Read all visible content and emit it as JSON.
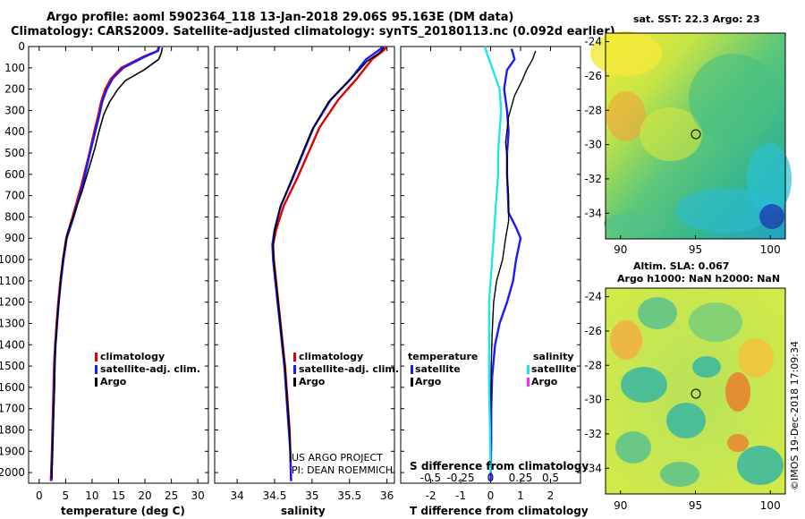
{
  "titles": {
    "line1": "Argo profile: aoml 5902364_118 13-Jan-2018 29.06S 95.163E (DM data)",
    "line2": "Climatology: CARS2009. Satellite-adjusted climatology: synTS_20180113.nc (0.092d earlier)"
  },
  "credit": {
    "line1": "US ARGO PROJECT",
    "line2": "PI: DEAN ROEMMICH",
    "imos": "©IMOS 19-Dec-2018 17:09:34"
  },
  "colors": {
    "clim": "#e00000",
    "sat": "#1a1aff",
    "argo": "#000000",
    "cyan": "#22e6e6",
    "magenta": "#ff22ff"
  },
  "chart_data": [
    {
      "type": "line",
      "name": "temperature-panel",
      "xlabel": "temperature (deg C)",
      "ylabel": "depth",
      "xlim": [
        -2,
        32
      ],
      "ylim": [
        2050,
        0
      ],
      "xticks": [
        "0",
        "5",
        "10",
        "15",
        "20",
        "25",
        "30"
      ],
      "yticks": [
        "0",
        "100",
        "200",
        "300",
        "400",
        "500",
        "600",
        "700",
        "800",
        "900",
        "1000",
        "1100",
        "1200",
        "1300",
        "1400",
        "1500",
        "1600",
        "1700",
        "1800",
        "1900",
        "2000"
      ],
      "legend": [
        "climatology",
        "satellite-adj. clim.",
        "Argo"
      ],
      "series": [
        {
          "name": "climatology",
          "color": "clim",
          "x": [
            22.6,
            22.4,
            19.5,
            15.5,
            13.6,
            12.5,
            11.7,
            11.2,
            10.4,
            9.5,
            8.0,
            6.3,
            5.1,
            4.5,
            4.0,
            3.6,
            3.3,
            3.0,
            2.8,
            2.6,
            2.4,
            2.2
          ],
          "y": [
            0,
            20,
            50,
            100,
            150,
            200,
            260,
            320,
            400,
            500,
            650,
            800,
            900,
            1000,
            1100,
            1200,
            1300,
            1400,
            1500,
            1700,
            1900,
            2040
          ]
        },
        {
          "name": "satellite-adj. clim.",
          "color": "sat",
          "x": [
            22.7,
            22.5,
            19.8,
            15.9,
            13.9,
            12.8,
            11.9,
            11.4,
            10.6,
            9.6,
            8.2,
            6.5,
            5.2,
            4.6,
            4.1,
            3.7,
            3.4,
            3.1,
            2.9,
            2.7,
            2.5,
            2.3
          ],
          "y": [
            0,
            20,
            50,
            100,
            150,
            200,
            260,
            320,
            400,
            500,
            650,
            800,
            900,
            1000,
            1100,
            1200,
            1300,
            1400,
            1500,
            1700,
            1900,
            2040
          ]
        },
        {
          "name": "Argo",
          "color": "argo",
          "x": [
            23.3,
            23.1,
            22.6,
            19.8,
            16.3,
            14.9,
            13.3,
            12.2,
            11.3,
            10.5,
            9.3,
            8.1,
            6.7,
            5.3,
            4.6,
            4.1,
            3.7,
            3.3,
            3.0,
            2.9,
            2.7,
            2.5,
            2.4
          ],
          "y": [
            5,
            30,
            60,
            110,
            160,
            200,
            260,
            320,
            400,
            480,
            580,
            680,
            780,
            880,
            980,
            1080,
            1200,
            1320,
            1450,
            1600,
            1750,
            1900,
            2030
          ]
        }
      ]
    },
    {
      "type": "line",
      "name": "salinity-panel",
      "xlabel": "salinity",
      "xlim": [
        33.7,
        36.1
      ],
      "ylim": [
        2050,
        0
      ],
      "xticks": [
        "34",
        "34.5",
        "35",
        "35.5",
        "36"
      ],
      "legend": [
        "climatology",
        "satellite-adj. clim.",
        "Argo"
      ],
      "series": [
        {
          "name": "climatology",
          "color": "clim",
          "x": [
            36.0,
            35.95,
            35.8,
            35.6,
            35.35,
            35.1,
            34.95,
            34.8,
            34.62,
            34.52,
            34.48,
            34.49,
            34.52,
            34.55,
            34.58,
            34.61,
            34.64,
            34.66,
            34.68,
            34.7,
            34.71,
            34.72
          ],
          "y": [
            0,
            20,
            60,
            150,
            250,
            380,
            500,
            620,
            750,
            860,
            930,
            1000,
            1100,
            1200,
            1300,
            1400,
            1500,
            1600,
            1700,
            1800,
            1900,
            2040
          ]
        },
        {
          "name": "satellite-adj. clim.",
          "color": "sat",
          "x": [
            35.95,
            35.88,
            35.72,
            35.52,
            35.25,
            35.02,
            34.88,
            34.74,
            34.58,
            34.5,
            34.47,
            34.48,
            34.51,
            34.54,
            34.57,
            34.6,
            34.63,
            34.65,
            34.67,
            34.69,
            34.71,
            34.72
          ],
          "y": [
            0,
            20,
            60,
            150,
            250,
            380,
            500,
            620,
            750,
            860,
            930,
            1000,
            1100,
            1200,
            1300,
            1400,
            1500,
            1600,
            1700,
            1800,
            1900,
            2040
          ]
        },
        {
          "name": "Argo",
          "color": "argo",
          "x": [
            35.96,
            35.9,
            35.73,
            35.5,
            35.22,
            35.0,
            34.86,
            34.72,
            34.57,
            34.5,
            34.48,
            34.49,
            34.52,
            34.55,
            34.58,
            34.61,
            34.64,
            34.66,
            34.68,
            34.7,
            34.71
          ],
          "y": [
            5,
            30,
            70,
            160,
            260,
            390,
            510,
            630,
            760,
            870,
            940,
            1010,
            1110,
            1210,
            1310,
            1410,
            1510,
            1610,
            1710,
            1810,
            1950
          ]
        }
      ]
    },
    {
      "type": "line",
      "name": "difference-panel",
      "xlabel": "T difference from climatology",
      "xlabel2": "S difference from climatology",
      "xlim": [
        -3,
        3
      ],
      "ylim": [
        2050,
        0
      ],
      "xticks": [
        "-2",
        "-1",
        "0",
        "1",
        "2"
      ],
      "xticks2": [
        "-0.5",
        "-0.25",
        "0",
        "0.25",
        "0.5"
      ],
      "legend_left_title": "temperature",
      "legend_left": [
        "satellite",
        "Argo"
      ],
      "legend_right_title": "salinity",
      "legend_right": [
        "satellite",
        "Argo"
      ],
      "series": [
        {
          "name": "T satellite",
          "color": "sat",
          "x": [
            0.7,
            0.8,
            0.55,
            0.45,
            0.55,
            0.6,
            0.55,
            0.55,
            0.58,
            0.6,
            0.85,
            1.0,
            0.85,
            0.75,
            0.55,
            0.3,
            0.15,
            0.05,
            0.02,
            0.02,
            0.0
          ],
          "y": [
            10,
            60,
            110,
            200,
            300,
            400,
            500,
            600,
            700,
            780,
            850,
            900,
            1000,
            1100,
            1200,
            1300,
            1400,
            1550,
            1700,
            1850,
            2040
          ]
        },
        {
          "name": "T Argo",
          "color": "argo",
          "x": [
            1.5,
            1.4,
            1.2,
            1.05,
            0.8,
            0.6,
            0.5,
            0.55,
            0.55,
            0.6,
            0.6,
            0.5,
            0.4,
            0.2,
            0.1,
            0.05,
            0.02,
            0.0,
            0.0
          ],
          "y": [
            20,
            60,
            110,
            160,
            230,
            330,
            450,
            520,
            600,
            700,
            820,
            900,
            1000,
            1100,
            1200,
            1350,
            1500,
            1700,
            1900
          ]
        },
        {
          "name": "S satellite",
          "color": "cyan",
          "x": [
            -0.2,
            -0.05,
            0.1,
            0.3,
            0.35,
            0.3,
            0.25,
            0.25,
            0.2,
            0.15,
            0.1,
            0.05,
            0.0,
            -0.05,
            -0.05,
            -0.05,
            -0.02,
            0.0
          ],
          "y": [
            0,
            60,
            120,
            200,
            300,
            400,
            500,
            600,
            700,
            800,
            900,
            1000,
            1100,
            1200,
            1400,
            1600,
            1800,
            2000
          ]
        }
      ]
    },
    {
      "type": "heatmap",
      "name": "sst-map",
      "title": "sat. SST: 22.3 Argo: 23",
      "xlim": [
        89,
        101
      ],
      "ylim": [
        -35.5,
        -23.5
      ],
      "xticks": [
        "90",
        "95",
        "100"
      ],
      "yticks": [
        "-24",
        "-26",
        "-28",
        "-30",
        "-32",
        "-34"
      ],
      "marker": {
        "lon": 95.163,
        "lat": -29.06
      }
    },
    {
      "type": "heatmap",
      "name": "sla-map",
      "title": "Altim. SLA: 0.067",
      "subtitle": "Argo h1000: NaN h2000: NaN",
      "xlim": [
        89,
        101
      ],
      "ylim": [
        -35.5,
        -23.5
      ],
      "xticks": [
        "90",
        "95",
        "100"
      ],
      "yticks": [
        "-24",
        "-26",
        "-28",
        "-30",
        "-32",
        "-34"
      ],
      "marker": {
        "lon": 95.163,
        "lat": -29.06
      }
    }
  ]
}
